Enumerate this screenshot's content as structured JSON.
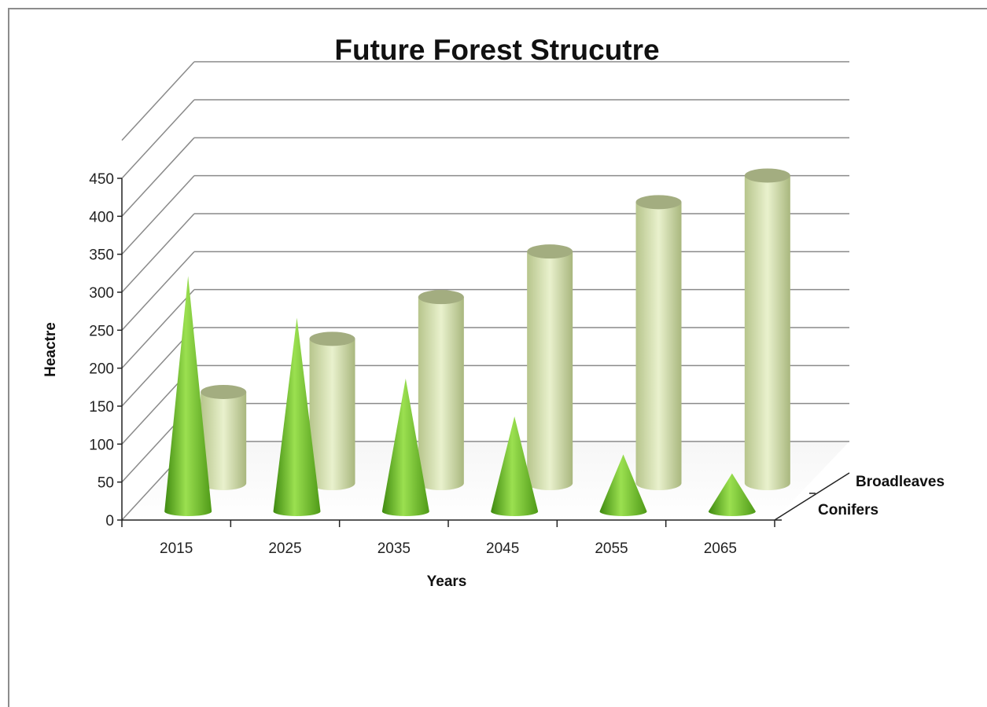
{
  "chart_data": {
    "type": "bar",
    "style": "3d-column",
    "title": "Future Forest Strucutre",
    "xlabel": "Years",
    "ylabel": "Heactre",
    "categories": [
      "2015",
      "2025",
      "2035",
      "2045",
      "2055",
      "2065"
    ],
    "ylim": [
      0,
      450
    ],
    "yticks": [
      "0",
      "50",
      "100",
      "150",
      "200",
      "250",
      "300",
      "350",
      "400",
      "450"
    ],
    "grid": true,
    "series": [
      {
        "name": "Conifers",
        "shape": "cone",
        "color": "#7ccf2c",
        "values": [
          310,
          255,
          175,
          125,
          75,
          50
        ]
      },
      {
        "name": "Broadleaves",
        "shape": "cylinder",
        "color": "#d3e0a6",
        "values": [
          120,
          190,
          245,
          305,
          370,
          405
        ]
      }
    ]
  }
}
